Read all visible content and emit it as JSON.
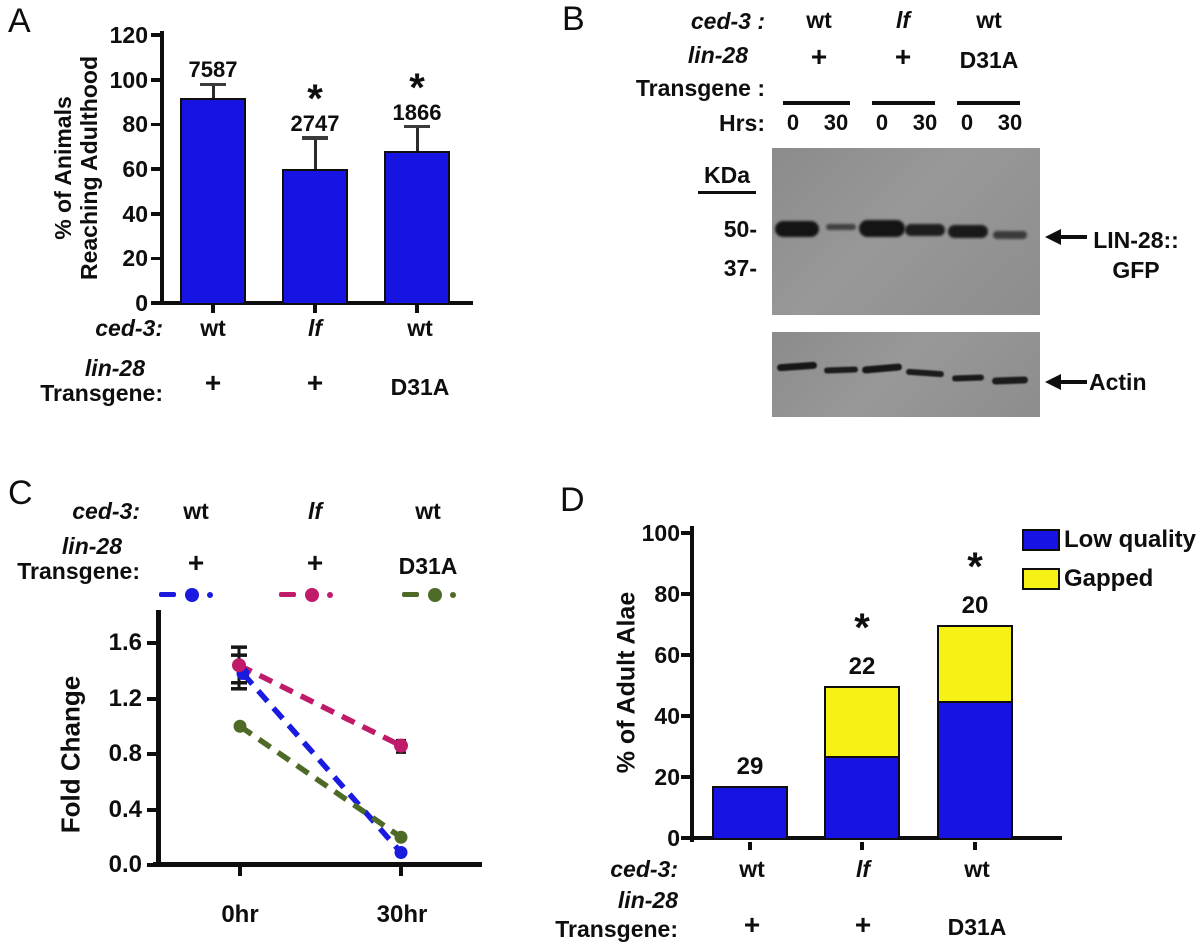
{
  "colors": {
    "bar_blue": "#1713e3",
    "gapped_yellow": "#f7f216",
    "series_blue": "#1b1be0",
    "series_magenta": "#c01a6a",
    "series_green": "#4d6b27",
    "blot_gray": "#8f8f8f",
    "axis_black": "#111111"
  },
  "panelA": {
    "label": "A",
    "ylabel_line1": "% of Animals",
    "ylabel_line2": "Reaching Adulthood",
    "header": {
      "gene_label": "ced-3:",
      "gene_values": [
        "wt",
        "lf",
        "wt"
      ],
      "transgene_label_line1": "lin-28",
      "transgene_label_line2": "Transgene:",
      "transgene_values": [
        "+",
        "+",
        "D31A"
      ]
    }
  },
  "panelB": {
    "label": "B",
    "header": {
      "gene_label": "ced-3 :",
      "gene_values": [
        "wt",
        "lf",
        "wt"
      ],
      "transgene_label_line1": "lin-28",
      "transgene_label_line2": "Transgene :",
      "transgene_values": [
        "+",
        "+",
        "D31A"
      ],
      "hrs_label": "Hrs:",
      "hrs_values": [
        "0",
        "30",
        "0",
        "30",
        "0",
        "30"
      ]
    },
    "kda_label": "KDa",
    "weight_markers": [
      "50-",
      "37-"
    ],
    "blot1_arrow_label_line1": "LIN-28::",
    "blot1_arrow_label_line2": "GFP",
    "blot2_arrow_label": "Actin",
    "blot1_band_intensity": [
      1.0,
      0.5,
      1.0,
      0.9,
      0.95,
      0.55
    ],
    "blot2_band_intensity": [
      0.95,
      0.9,
      0.95,
      0.9,
      0.92,
      0.9
    ]
  },
  "panelC": {
    "label": "C",
    "header": {
      "gene_label": "ced-3:",
      "gene_values": [
        "wt",
        "lf",
        "wt"
      ],
      "transgene_label_line1": "lin-28",
      "transgene_label_line2": "Transgene:",
      "transgene_values": [
        "+",
        "+",
        "D31A"
      ]
    }
  },
  "panelD": {
    "label": "D",
    "legend": [
      {
        "label": "Low quality",
        "color": "#1713e3"
      },
      {
        "label": "Gapped",
        "color": "#f7f216"
      }
    ],
    "header": {
      "gene_label": "ced-3:",
      "gene_values": [
        "wt",
        "lf",
        "wt"
      ],
      "transgene_label_line1": "lin-28",
      "transgene_label_line2": "Transgene:",
      "transgene_values": [
        "+",
        "+",
        "D31A"
      ]
    }
  },
  "chart_data": [
    {
      "panel": "A",
      "type": "bar",
      "title": "",
      "ylabel": "% of Animals Reaching Adulthood",
      "ylim": [
        0,
        120
      ],
      "yticks": [
        0,
        20,
        40,
        60,
        80,
        100,
        120
      ],
      "categories": [
        "ced-3 wt; lin-28 +",
        "ced-3 lf; lin-28 +",
        "ced-3 wt; lin-28 D31A"
      ],
      "values": [
        92,
        60,
        68
      ],
      "error_top": [
        98,
        74,
        79
      ],
      "n_labels": [
        "7587",
        "2747",
        "1866"
      ],
      "significance": [
        "",
        "*",
        "*"
      ],
      "bar_color": "#1713e3",
      "grid": false
    },
    {
      "panel": "C",
      "type": "line",
      "title": "",
      "ylabel": "Fold Change",
      "ylim": [
        0,
        1.75
      ],
      "yticks": [
        "0.0",
        "0.4",
        "0.8",
        "1.2",
        "1.6"
      ],
      "x_categories": [
        "0hr",
        "30hr"
      ],
      "series": [
        {
          "name": "ced-3 wt; lin-28 +",
          "color": "#1b1be0",
          "values": [
            1.38,
            0.09
          ]
        },
        {
          "name": "ced-3 lf; lin-28 +",
          "color": "#c01a6a",
          "values": [
            1.44,
            0.86
          ]
        },
        {
          "name": "ced-3 wt; lin-28 D31A",
          "color": "#4d6b27",
          "values": [
            1.0,
            0.2
          ]
        }
      ],
      "error_bar_0hr_range": [
        1.27,
        1.57
      ],
      "error_bar_30hr_magenta_range": [
        0.81,
        0.9
      ],
      "line_style": "dashed",
      "grid": false,
      "legend_position": "top"
    },
    {
      "panel": "D",
      "type": "stacked-bar",
      "title": "",
      "ylabel": "% of Adult Alae",
      "ylim": [
        0,
        100
      ],
      "yticks": [
        0,
        20,
        40,
        60,
        80,
        100
      ],
      "categories": [
        "ced-3 wt; lin-28 +",
        "ced-3 lf; lin-28 +",
        "ced-3 wt; lin-28 D31A"
      ],
      "series": [
        {
          "name": "Low quality",
          "color": "#1713e3",
          "values": [
            17,
            27,
            45
          ]
        },
        {
          "name": "Gapped",
          "color": "#f7f216",
          "values": [
            0,
            23,
            25
          ]
        }
      ],
      "n_labels": [
        "29",
        "22",
        "20"
      ],
      "significance": [
        "",
        "*",
        "*"
      ],
      "legend_position": "top-right",
      "grid": false
    }
  ]
}
